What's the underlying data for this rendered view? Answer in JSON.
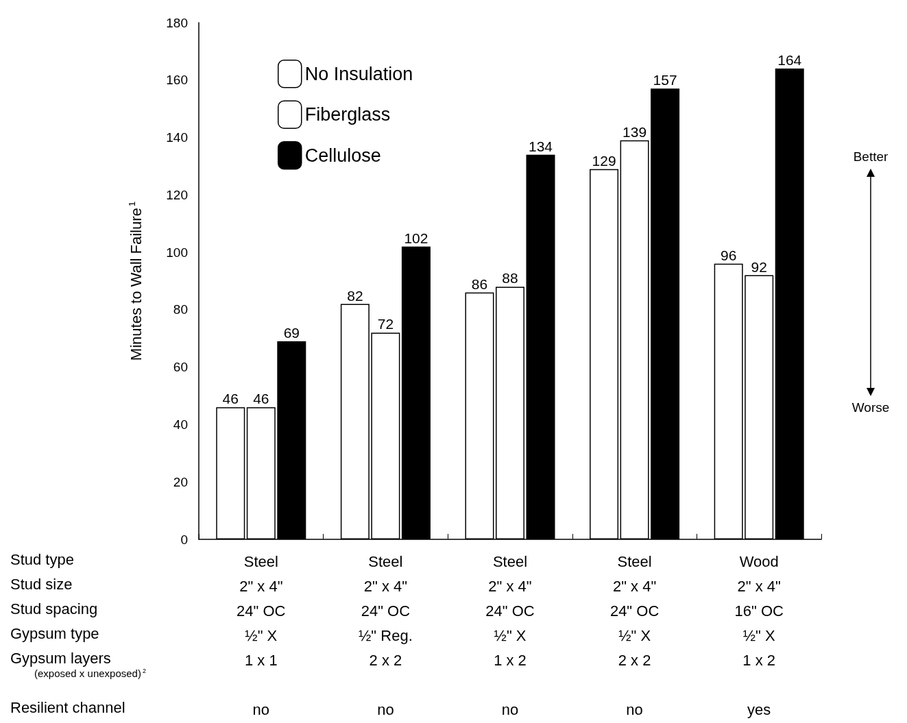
{
  "chart_data": {
    "type": "bar",
    "ylabel": "Minutes to Wall Failure$^{1}$",
    "categories": [
      "Steel\n2\" x 4\"\n24\" OC\n½\" X\n1 x 1\n\nno",
      "Steel\n2\" x 4\"\n24\" OC\n½\" Reg.\n2 x 2\n\nno",
      "Steel\n2\" x 4\"\n24\" OC\n½\" X\n1 x 2\n\nno",
      "Steel\n2\" x 4\"\n24\" OC\n½\" X\n2 x 2\n\nno",
      "Wood\n2\" x 4\"\n16\" OC\n½\" X\n1 x 2\n\nyes"
    ],
    "series": [
      {
        "name": "No Insulation",
        "color": "#ffffff",
        "values": [
          46,
          82,
          86,
          129,
          96
        ]
      },
      {
        "name": "Fiberglass",
        "color": "#ffffff",
        "values": [
          46,
          72,
          88,
          139,
          92
        ]
      },
      {
        "name": "Cellulose",
        "color": "#000000",
        "values": [
          69,
          102,
          134,
          157,
          164
        ]
      }
    ],
    "ylim": [
      0,
      180
    ],
    "yticks": [
      0,
      20,
      40,
      60,
      80,
      100,
      120,
      140,
      160,
      180
    ],
    "grid": false,
    "legend": "top left",
    "data_labels": true,
    "annotations": [
      "Stud type",
      "Stud size",
      "Stud spacing",
      "Gypsum type",
      "Gypsum layers",
      "(exposed x unexposed)$^{2}$",
      "Resilient channel",
      "Better",
      "Worse"
    ]
  }
}
